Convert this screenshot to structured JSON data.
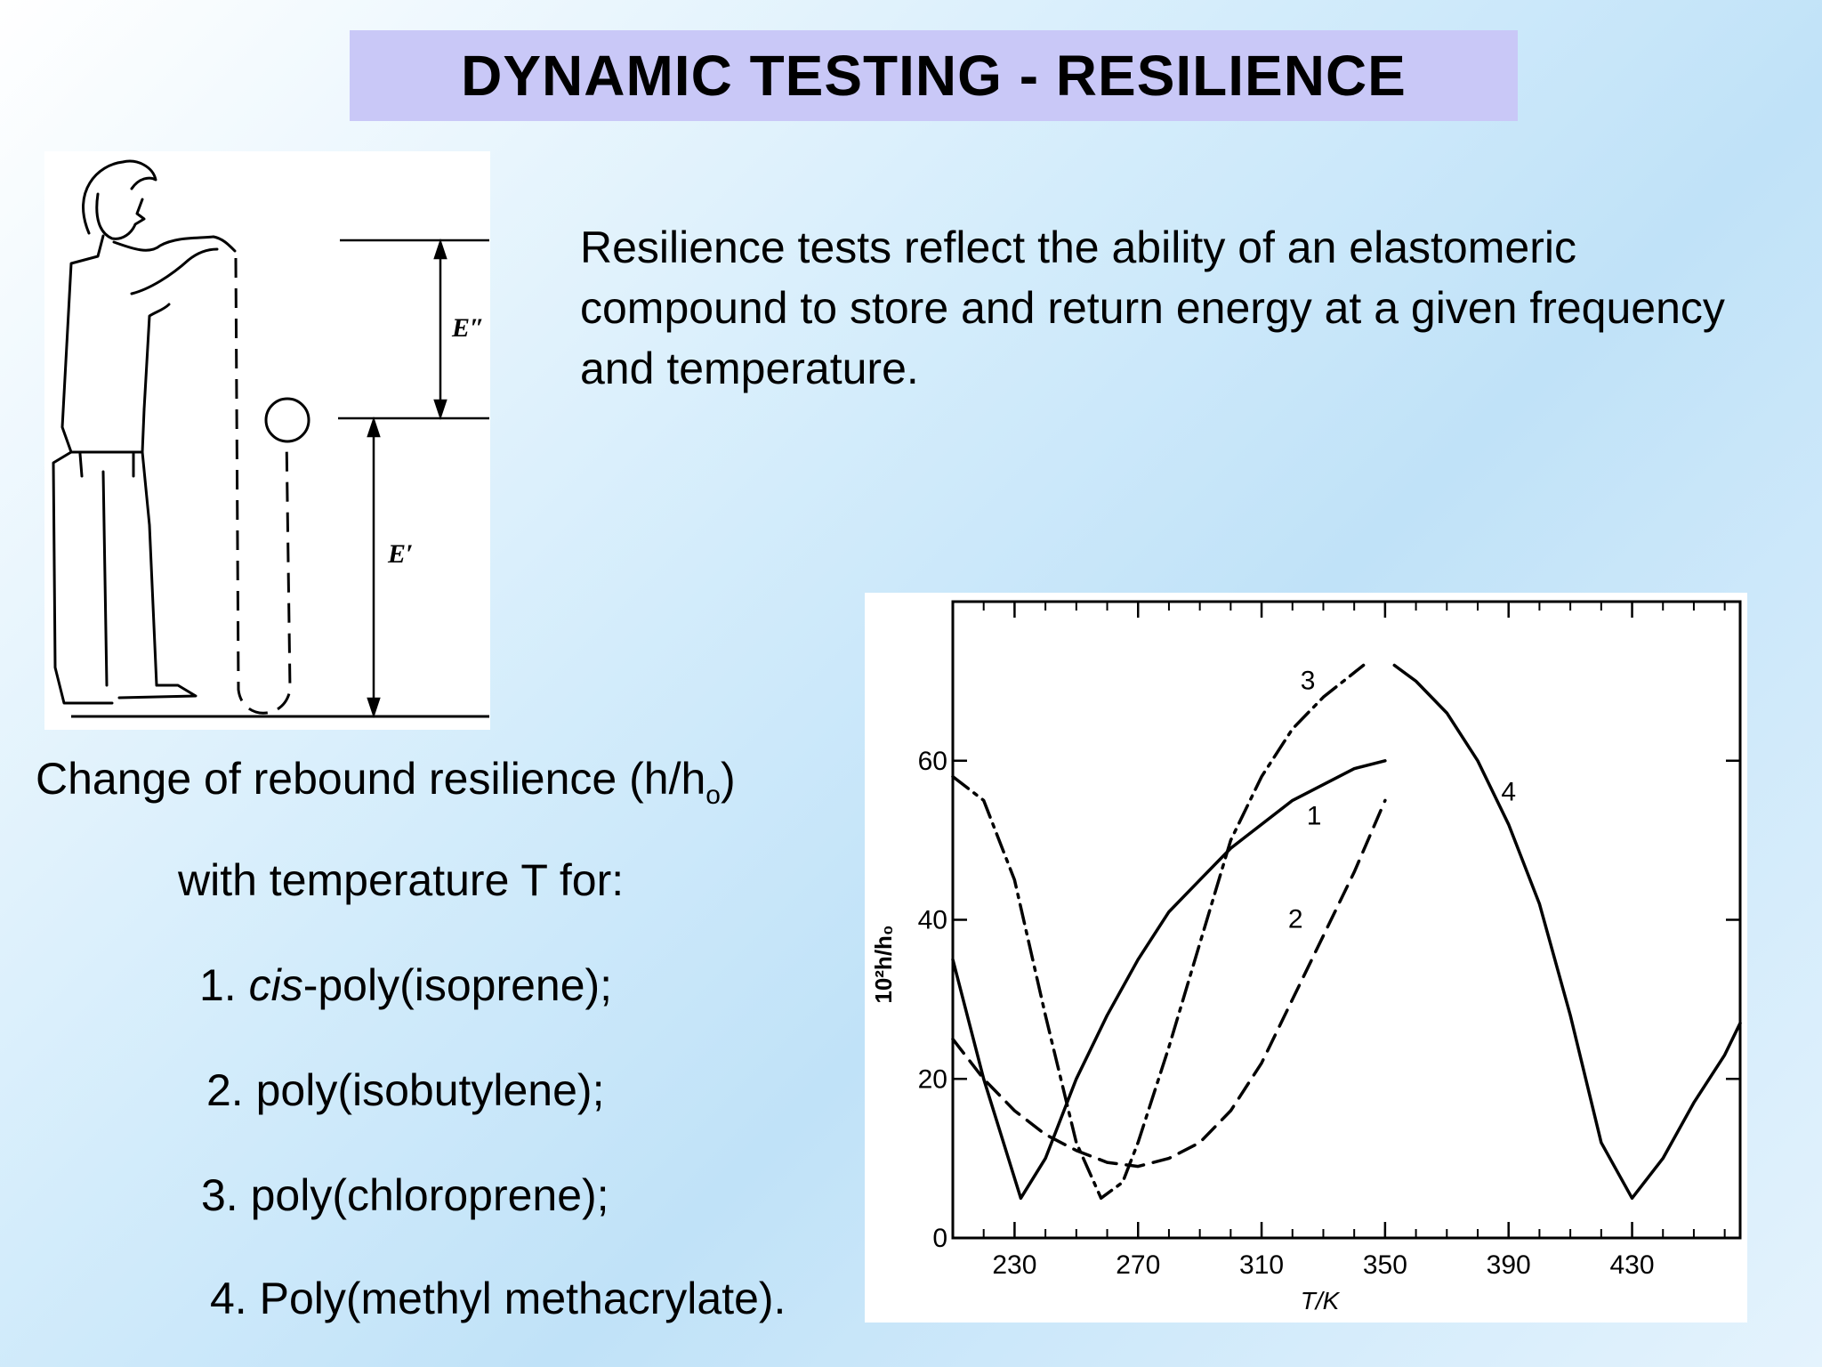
{
  "title": "DYNAMIC TESTING  - RESILIENCE",
  "intro_text": "Resilience tests reflect the ability of an elastomeric compound to store and return energy at a given frequency and temperature.",
  "illustration": {
    "label_e_loss": "E″",
    "label_e_storage": "E′"
  },
  "caption": {
    "line1_main": "Change of rebound resilience (h/h",
    "line1_sub": "o",
    "line1_end": ")",
    "line2": "with temperature T for:",
    "item1_num": "1. ",
    "item1_italic": "cis",
    "item1_rest": "-poly(isoprene);",
    "item2": "2. poly(isobutylene);",
    "item3": "3. poly(chloroprene);",
    "item4": "4. Poly(methyl methacrylate)."
  },
  "chart_data": {
    "type": "line",
    "xlabel": "T/K",
    "ylabel": "10²h/h₀",
    "xlim": [
      210,
      465
    ],
    "ylim": [
      0,
      80
    ],
    "xticks": [
      230,
      270,
      310,
      350,
      390,
      430
    ],
    "yticks": [
      0,
      20,
      40,
      60
    ],
    "grid": false,
    "series": [
      {
        "name": "1",
        "style": "solid",
        "x": [
          210,
          220,
          232,
          240,
          250,
          260,
          270,
          280,
          290,
          300,
          310,
          320,
          330,
          340,
          350
        ],
        "y": [
          35,
          20,
          5,
          10,
          20,
          28,
          35,
          41,
          45,
          49,
          52,
          55,
          57,
          59,
          60
        ]
      },
      {
        "name": "2",
        "style": "dashed",
        "x": [
          210,
          220,
          230,
          240,
          250,
          260,
          270,
          280,
          290,
          300,
          310,
          320,
          330,
          340,
          350
        ],
        "y": [
          25,
          20,
          16,
          13,
          11,
          9.5,
          9,
          10,
          12,
          16,
          22,
          30,
          38,
          46,
          55
        ]
      },
      {
        "name": "3",
        "style": "dash-dot",
        "x": [
          210,
          220,
          230,
          240,
          250,
          258,
          265,
          270,
          280,
          290,
          300,
          310,
          320,
          330,
          343
        ],
        "y": [
          58,
          55,
          45,
          28,
          12,
          5,
          7,
          12,
          24,
          37,
          50,
          58,
          64,
          68,
          72
        ]
      },
      {
        "name": "4",
        "style": "solid",
        "x": [
          353,
          360,
          370,
          380,
          390,
          400,
          410,
          420,
          430,
          440,
          450,
          460,
          465
        ],
        "y": [
          72,
          70,
          66,
          60,
          52,
          42,
          28,
          12,
          5,
          10,
          17,
          23,
          27
        ]
      }
    ],
    "labels": [
      {
        "text": "1",
        "x": 327,
        "y": 52
      },
      {
        "text": "2",
        "x": 321,
        "y": 39
      },
      {
        "text": "3",
        "x": 325,
        "y": 69
      },
      {
        "text": "4",
        "x": 390,
        "y": 55
      }
    ]
  }
}
